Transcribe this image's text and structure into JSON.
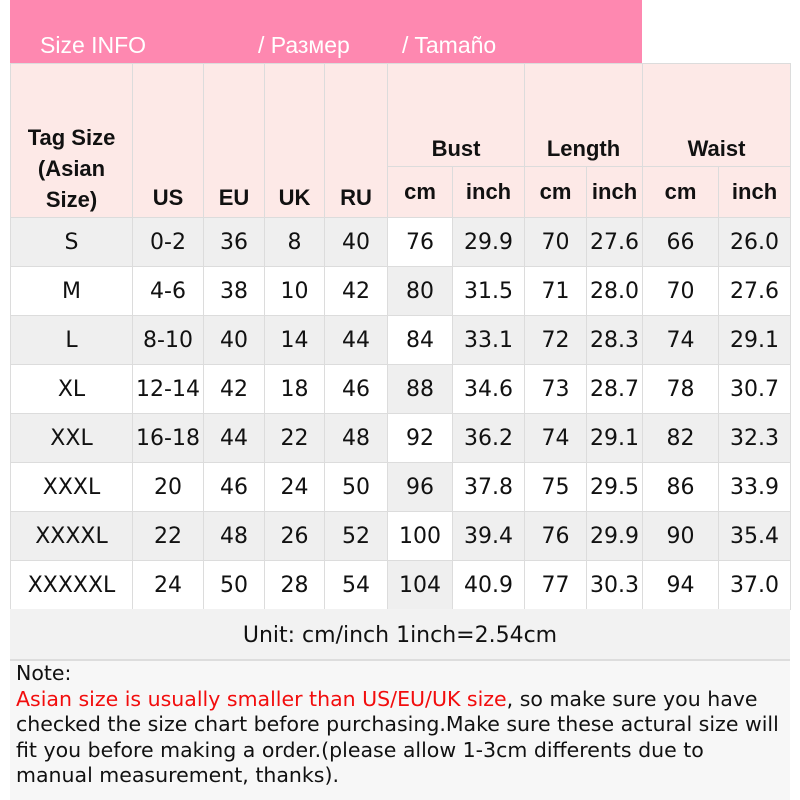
{
  "banner": {
    "title": "Size INFO",
    "ru": "/  Размер",
    "es": "/  Tamaño"
  },
  "headers": {
    "tag": "Tag Size (Asian Size)",
    "us": "US",
    "eu": "EU",
    "uk": "UK",
    "ru": "RU",
    "bust": "Bust",
    "length": "Length",
    "waist": "Waist",
    "cm": "cm",
    "inch": "inch"
  },
  "rows": [
    [
      "S",
      "0-2",
      "36",
      "8",
      "40",
      "76",
      "29.9",
      "70",
      "27.6",
      "66",
      "26.0"
    ],
    [
      "M",
      "4-6",
      "38",
      "10",
      "42",
      "80",
      "31.5",
      "71",
      "28.0",
      "70",
      "27.6"
    ],
    [
      "L",
      "8-10",
      "40",
      "14",
      "44",
      "84",
      "33.1",
      "72",
      "28.3",
      "74",
      "29.1"
    ],
    [
      "XL",
      "12-14",
      "42",
      "18",
      "46",
      "88",
      "34.6",
      "73",
      "28.7",
      "78",
      "30.7"
    ],
    [
      "XXL",
      "16-18",
      "44",
      "22",
      "48",
      "92",
      "36.2",
      "74",
      "29.1",
      "82",
      "32.3"
    ],
    [
      "XXXL",
      "20",
      "46",
      "24",
      "50",
      "96",
      "37.8",
      "75",
      "29.5",
      "86",
      "33.9"
    ],
    [
      "XXXXL",
      "22",
      "48",
      "26",
      "52",
      "100",
      "39.4",
      "76",
      "29.9",
      "90",
      "35.4"
    ],
    [
      "XXXXXL",
      "24",
      "50",
      "28",
      "54",
      "104",
      "40.9",
      "77",
      "30.3",
      "94",
      "37.0"
    ]
  ],
  "unit": "Unit: cm/inch   1inch=2.54cm",
  "note": {
    "label": "Note:",
    "warning": "Asian size is usually smaller than US/EU/UK size",
    "text": ", so make sure you have checked the size chart before purchasing.Make sure these actural size will fit you before making a order.(please allow 1-3cm differents due to manual measurement, thanks)."
  },
  "colors": {
    "banner": "#fe88b0",
    "header": "#fde9e7",
    "warning": "#f20d0d"
  }
}
